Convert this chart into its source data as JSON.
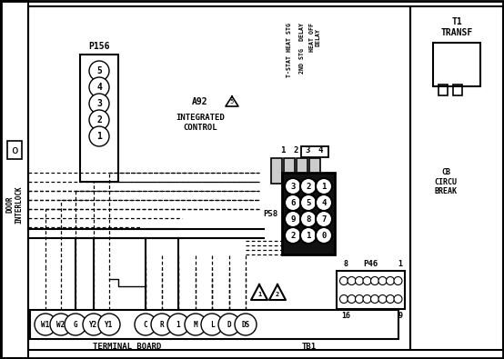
{
  "bg_color": "#ffffff",
  "p156_label": "P156",
  "p156_pins": [
    "5",
    "4",
    "3",
    "2",
    "1"
  ],
  "a92_label": "A92",
  "a92_sub": "INTEGRATED\nCONTROL",
  "relay_col1": "T-STAT HEAT STG",
  "relay_col2": "2ND STG  DELAY",
  "relay_col3": "HEAT OFF\nDELAY",
  "relay_nums": [
    "1",
    "2",
    "3",
    "4"
  ],
  "p58_label": "P58",
  "p58_pins": [
    [
      "3",
      "2",
      "1"
    ],
    [
      "6",
      "5",
      "4"
    ],
    [
      "9",
      "8",
      "7"
    ],
    [
      "2",
      "1",
      "0"
    ]
  ],
  "p46_label": "P46",
  "t1_label": "T1\nTRANSF",
  "cb_label": "CB\nCIRCU\nBREAK",
  "terminal_labels": [
    "W1",
    "W2",
    "G",
    "Y2",
    "Y1",
    "C",
    "R",
    "1",
    "M",
    "L",
    "D",
    "DS"
  ],
  "terminal_board_label": "TERMINAL BOARD",
  "tb1_label": "TB1",
  "door_label": "DOOR\nINTERLOCK"
}
